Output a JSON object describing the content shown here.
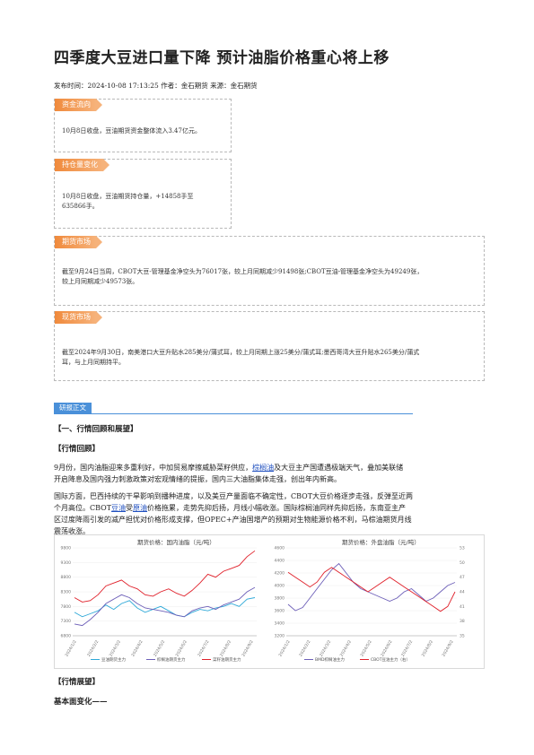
{
  "article": {
    "title": "四季度大豆进口量下降 预计油脂价格重心将上移",
    "meta": "发布时间：2024-10-08 17:13:25 作者：金石期货 来源：金石期货"
  },
  "sections": {
    "fund_flow": {
      "tag": "资金流向",
      "text": "10月8日收盘，豆油期货资金整体流入3.47亿元。"
    },
    "position": {
      "tag": "持仓量变化",
      "text_1": "10月8日收盘，豆油期货持仓量，+14858手至",
      "text_2": "635866手。"
    },
    "futures": {
      "tag": "期货市场",
      "text_1": "截至9月24日当周，CBOT大豆-管理基金净空头为76017张，较上月同期减少91498张;CBOT豆油-管理基金净空头为49249张，",
      "text_2": "较上月同期减少49573张。"
    },
    "spot": {
      "tag": "现货市场",
      "text_1": "截至2024年9月30日，南美港口大豆升贴水285美分/蒲式耳，较上月同期上涨25美分/蒲式耳;墨西哥湾大豆升贴水265美分/蒲式",
      "text_2": "耳，与上月同期持平。"
    }
  },
  "body": {
    "yanbao_tag": "研报正文",
    "h1": "【一、行情回顾和展望】",
    "h2": "【行情回顾】",
    "p1_a": "9月份，国内油脂迎来多重利好，中加贸易摩擦威胁菜籽供应，",
    "p1_link": "棕榈油",
    "p1_b": "及大豆主产国遭遇极端天气，叠加美联储",
    "p1_line2": "开启降息及国内强力刺激政策对宏观情绪的提振，国内三大油脂集体走强，创出年内新高。",
    "p2_line1": "国际方面，巴西持续的干旱影响到播种进度，以及美豆产量面临不确定性，CBOT大豆价格逐步走强，反弹至近两",
    "p2_line2_a": "个月高位。CBOT",
    "p2_link1": "豆油",
    "p2_line2_b": "受",
    "p2_link2": "原油",
    "p2_line2_c": "价格拖累，走势先抑后扬，月线小幅收涨。国际棕榈油同样先抑后扬，东南亚主产",
    "p2_line3": "区过度降雨引发的减产担忧对价格形成支撑，但OPEC+产油国增产的预期对生物能源价格不利，马棕油期货月线",
    "p2_line4": "震荡收涨。",
    "h3": "【行情展望】",
    "h4": "基本面变化——"
  },
  "chart_data": [
    {
      "type": "line",
      "title": "期货价格：国内油脂（元/吨）",
      "x_tick_labels": [
        "2024/1/2",
        "2024/2/2",
        "2024/3/2",
        "2024/4/2",
        "2024/5/2",
        "2024/6/2",
        "2024/7/2",
        "2024/8/2",
        "2024/9/2"
      ],
      "y_tick_labels": [
        "6800",
        "7300",
        "7800",
        "8300",
        "8800",
        "9300",
        "9800"
      ],
      "ylim": [
        6800,
        9800
      ],
      "series": [
        {
          "name": "豆油期货主力",
          "color": "#2fa9d8",
          "values": [
            7600,
            7450,
            7550,
            7650,
            7850,
            7700,
            7900,
            8000,
            7750,
            7600,
            7700,
            7800,
            7650,
            7500,
            7450,
            7600,
            7700,
            7650,
            7750,
            7800,
            7900,
            7800,
            8050,
            8100
          ]
        },
        {
          "name": "棕榈油期货主力",
          "color": "#6d5fb8",
          "values": [
            7200,
            7150,
            7350,
            7600,
            7900,
            8050,
            8200,
            8100,
            7900,
            7750,
            7700,
            7650,
            7600,
            7500,
            7450,
            7650,
            7750,
            7800,
            7700,
            7850,
            7950,
            8050,
            8300,
            8450
          ]
        },
        {
          "name": "菜籽油期货主力",
          "color": "#e0202a",
          "values": [
            8100,
            7950,
            8000,
            8200,
            8500,
            8600,
            8700,
            8500,
            8400,
            8200,
            8150,
            8300,
            8400,
            8250,
            8150,
            8350,
            8600,
            8900,
            8800,
            9000,
            9100,
            9200,
            9500,
            9700
          ]
        }
      ]
    },
    {
      "type": "line",
      "title": "期货价格：外盘油脂（元/吨）",
      "x_tick_labels": [
        "2024/1/2",
        "2024/2/2",
        "2024/3/2",
        "2024/4/2",
        "2024/5/2",
        "2024/6/2",
        "2024/7/2",
        "2024/8/2",
        "2024/9/2"
      ],
      "y_tick_labels": [
        "3200",
        "3400",
        "3600",
        "3800",
        "4000",
        "4200",
        "4400",
        "4600"
      ],
      "y2_tick_labels": [
        "35",
        "38",
        "41",
        "44",
        "47",
        "50",
        "53"
      ],
      "ylim": [
        3200,
        4600
      ],
      "y2lim": [
        35,
        53
      ],
      "series": [
        {
          "name": "BMD棕榈油主力",
          "axis": "left",
          "color": "#6d5fb8",
          "values": [
            3700,
            3600,
            3650,
            3800,
            3950,
            4100,
            4250,
            4350,
            4200,
            4050,
            3950,
            3900,
            3850,
            3800,
            3750,
            3800,
            3900,
            3950,
            3850,
            3750,
            3800,
            3900,
            4000,
            4050
          ]
        },
        {
          "name": "CBOT豆油主力（右）",
          "axis": "right",
          "color": "#e0202a",
          "values": [
            48,
            47,
            46,
            45,
            46,
            48,
            49,
            48,
            47,
            46,
            45,
            44,
            45,
            46,
            47,
            46,
            45,
            44,
            43,
            42,
            41,
            40,
            41,
            44
          ]
        }
      ]
    }
  ]
}
